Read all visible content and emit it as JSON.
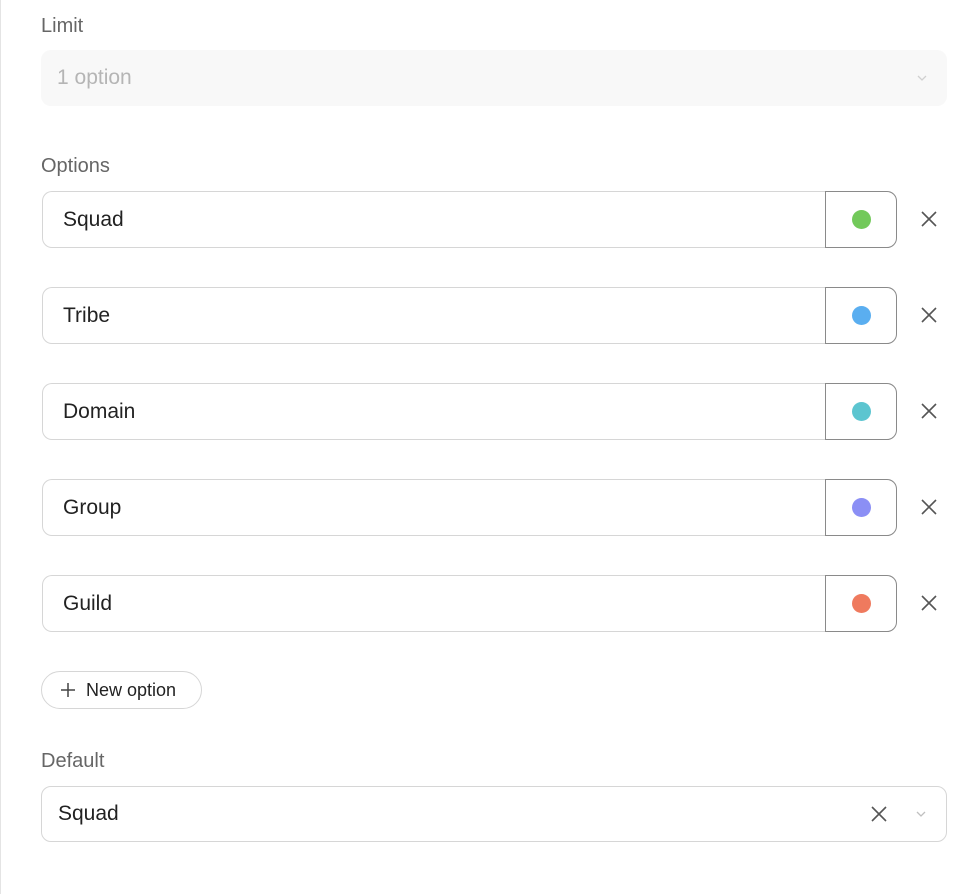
{
  "limit": {
    "label": "Limit",
    "value": "1 option"
  },
  "options": {
    "label": "Options",
    "items": [
      {
        "name": "Squad",
        "color": "#72c95a"
      },
      {
        "name": "Tribe",
        "color": "#5aaef0"
      },
      {
        "name": "Domain",
        "color": "#5cc5d0"
      },
      {
        "name": "Group",
        "color": "#8b8ff5"
      },
      {
        "name": "Guild",
        "color": "#ef7a5e"
      }
    ],
    "new_option_label": "New option"
  },
  "default": {
    "label": "Default",
    "value": "Squad"
  }
}
